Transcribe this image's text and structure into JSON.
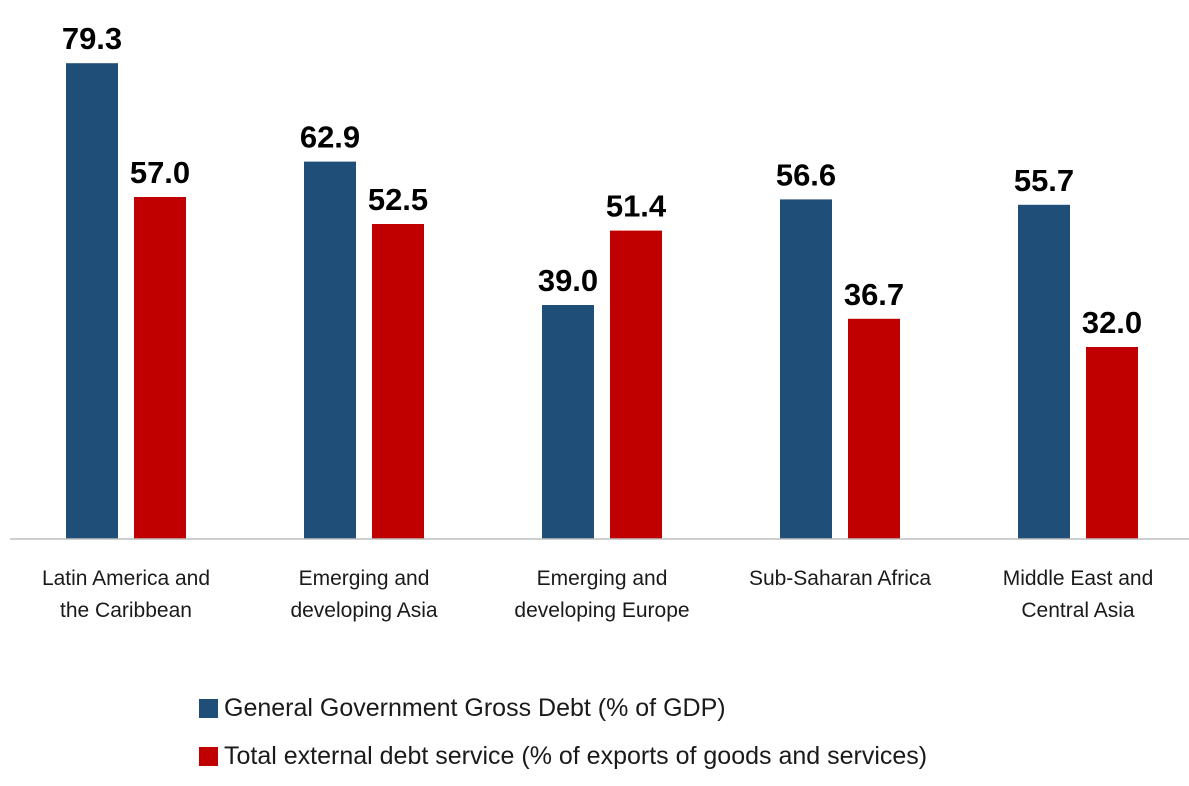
{
  "chart_data": {
    "type": "bar",
    "categories": [
      [
        "Latin America and",
        "the Caribbean"
      ],
      [
        "Emerging and",
        "developing Asia"
      ],
      [
        "Emerging and",
        "developing Europe"
      ],
      [
        "Sub-Saharan Africa"
      ],
      [
        "Middle East and",
        "Central Asia"
      ]
    ],
    "series": [
      {
        "name": "General Government Gross Debt (% of GDP)",
        "color": "#1f4e79",
        "values": [
          79.3,
          62.9,
          39.0,
          56.6,
          55.7
        ],
        "labels": [
          "79.3",
          "62.9",
          "39.0",
          "56.6",
          "55.7"
        ]
      },
      {
        "name": "Total external debt service  (% of exports of goods and services)",
        "color": "#c00000",
        "values": [
          57.0,
          52.5,
          51.4,
          36.7,
          32.0
        ],
        "labels": [
          "57.0",
          "52.5",
          "51.4",
          "36.7",
          "32.0"
        ]
      }
    ],
    "ylim": [
      0,
      80
    ],
    "grid": false,
    "legend_position": "bottom",
    "title": "",
    "xlabel": "",
    "ylabel": ""
  }
}
